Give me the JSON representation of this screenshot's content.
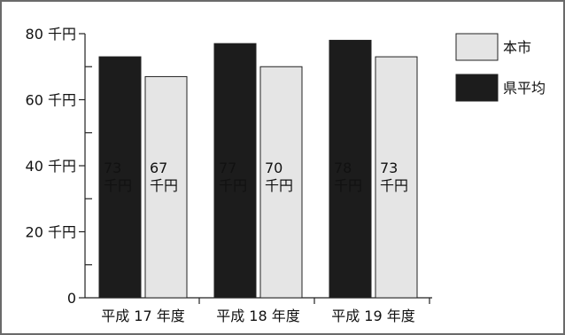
{
  "chart_data": {
    "type": "bar",
    "categories": [
      "平成 17 年度",
      "平成 18 年度",
      "平成 19 年度"
    ],
    "series": [
      {
        "name": "県平均",
        "values": [
          73,
          77,
          78
        ],
        "color": "#1c1c1c",
        "label_color": "#ffffff"
      },
      {
        "name": "本市",
        "values": [
          67,
          70,
          73
        ],
        "color": "#e5e5e5",
        "label_color": "#111111"
      }
    ],
    "legend_order": [
      "本市",
      "県平均"
    ],
    "legend_position": "top-right",
    "ylim": [
      0,
      80
    ],
    "y_ticks": [
      0,
      20,
      40,
      60,
      80
    ],
    "y_tick_labels": [
      "0",
      "20 千円",
      "40 千円",
      "60 千円",
      "80 千円"
    ],
    "data_label_unit": "千円",
    "grid": false
  }
}
